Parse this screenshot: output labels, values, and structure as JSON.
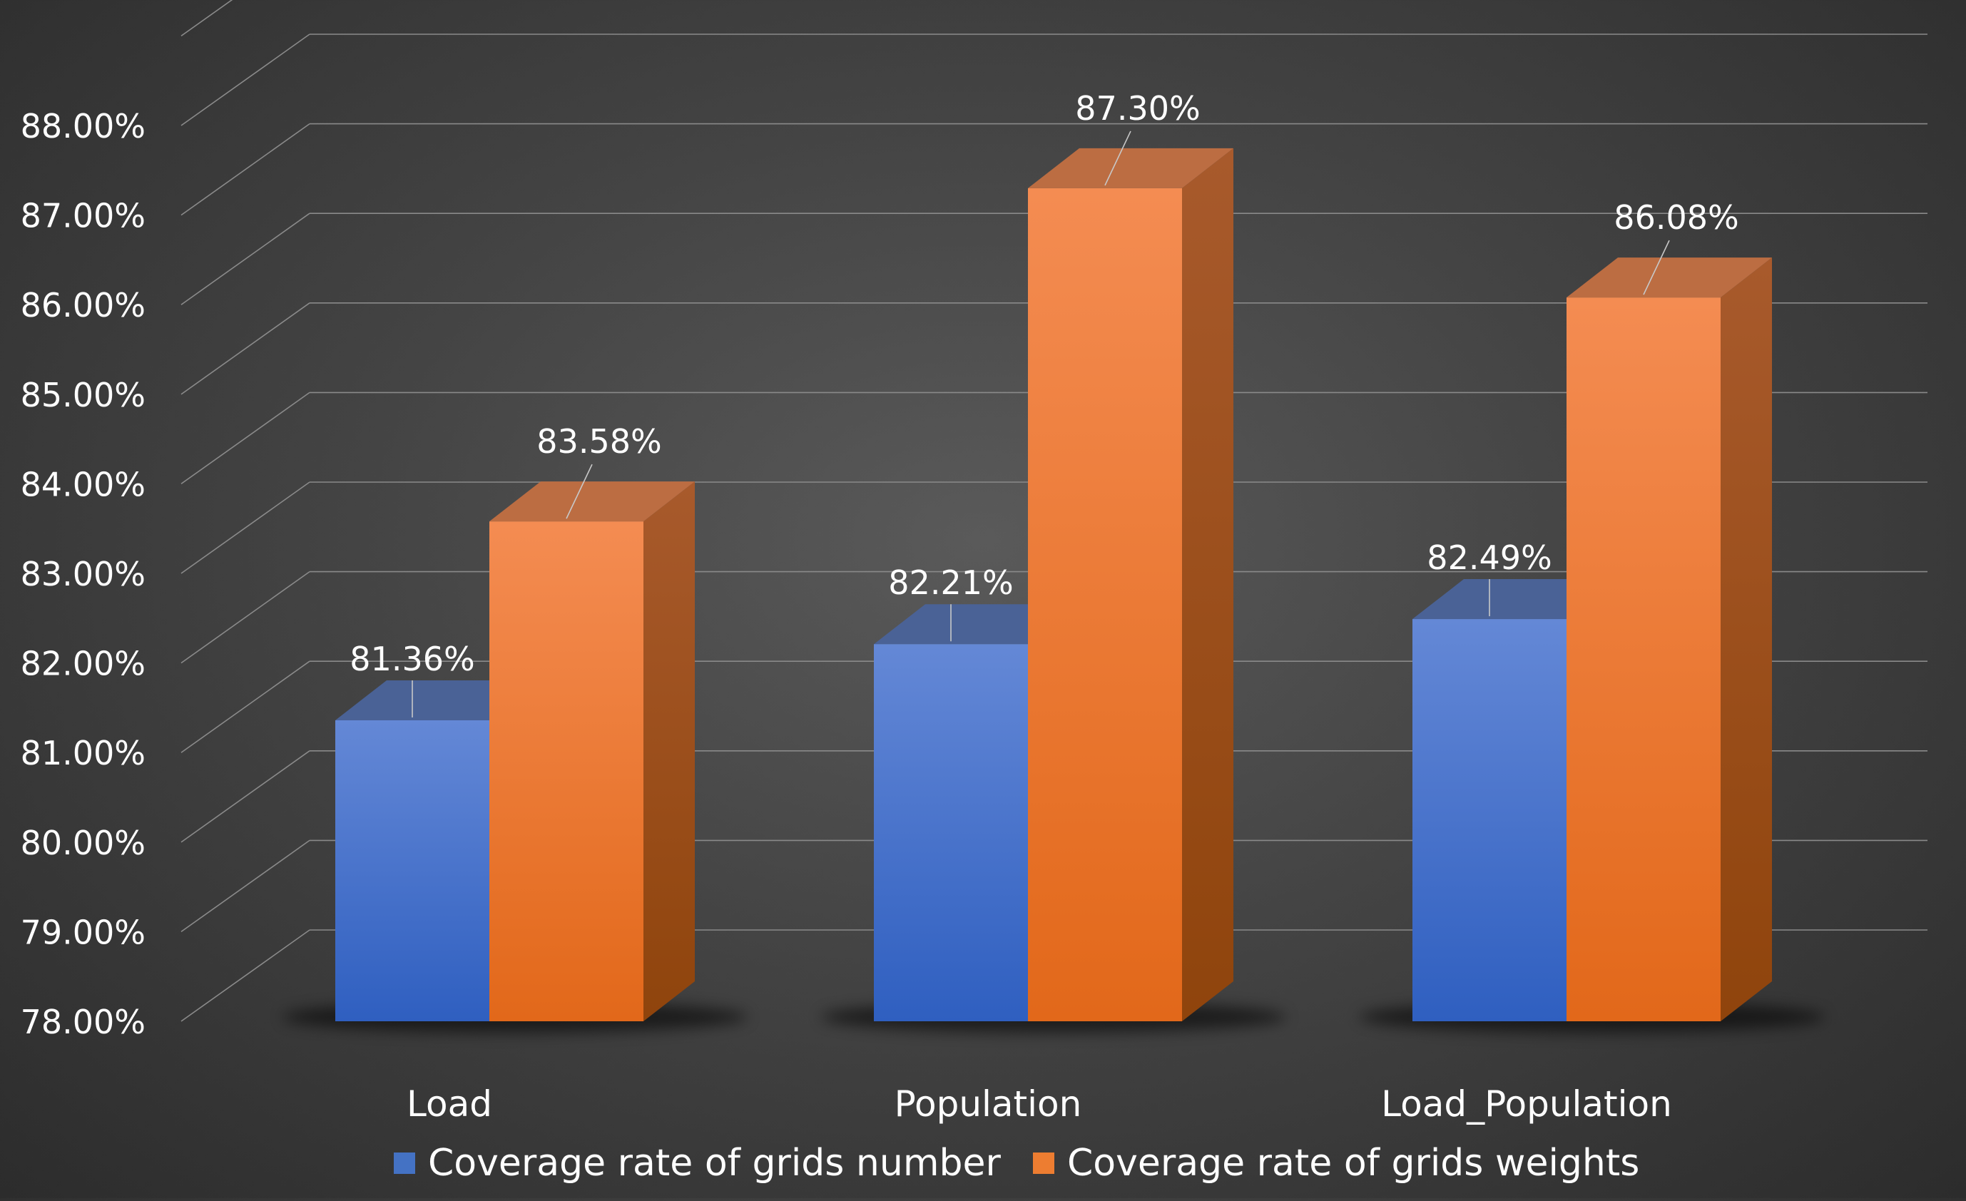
{
  "chart_data": {
    "type": "bar",
    "title": "",
    "xlabel": "",
    "ylabel": "",
    "categories": [
      "Load",
      "Population",
      "Load_Population"
    ],
    "series": [
      {
        "name": "Coverage rate of grids number",
        "values": [
          81.36,
          82.21,
          82.49
        ],
        "labels": [
          "81.36%",
          "82.21%",
          "82.49%"
        ],
        "color": "#4472C4"
      },
      {
        "name": "Coverage rate of grids weights",
        "values": [
          83.58,
          87.3,
          86.08
        ],
        "labels": [
          "83.58%",
          "87.30%",
          "86.08%"
        ],
        "color": "#ED7D31"
      }
    ],
    "ylim": [
      78,
      88
    ],
    "yticks": [
      "78.00%",
      "79.00%",
      "80.00%",
      "81.00%",
      "82.00%",
      "83.00%",
      "84.00%",
      "85.00%",
      "86.00%",
      "87.00%",
      "88.00%"
    ],
    "grid": true,
    "style": "3d-column",
    "legend": "bottom",
    "background": "#3f3f3f",
    "text_color": "#ffffff"
  }
}
